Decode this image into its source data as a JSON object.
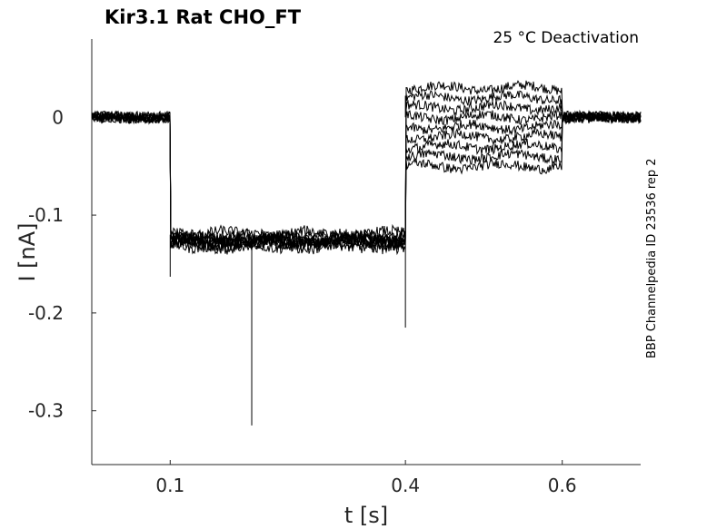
{
  "chart_data": {
    "type": "line",
    "title": "Kir3.1  Rat  CHO_FT",
    "annotation": "25 °C  Deactivation",
    "side_label": "BBP Channelpedia ID 23536 rep 2",
    "xlabel": "t [s]",
    "ylabel": "I [nA]",
    "xlim": [
      0.0,
      0.7
    ],
    "ylim": [
      -0.355,
      0.08
    ],
    "xticks": [
      {
        "value": 0.1,
        "label": "0.1"
      },
      {
        "value": 0.4,
        "label": "0.4"
      },
      {
        "value": 0.6,
        "label": "0.6"
      }
    ],
    "yticks": [
      {
        "value": 0,
        "label": "0"
      },
      {
        "value": -0.1,
        "label": "-0.1"
      },
      {
        "value": -0.2,
        "label": "-0.2"
      },
      {
        "value": -0.3,
        "label": "-0.3"
      }
    ],
    "grid": false,
    "protocol_phases": {
      "holding_end": 0.1,
      "hyperpolarizing_step_end": 0.4,
      "test_step_end": 0.6
    },
    "series": [
      {
        "values": {
          "holding": 0.0,
          "step": -0.125,
          "test": 0.03,
          "tail": 0.0
        }
      },
      {
        "values": {
          "holding": 0.0,
          "step": -0.128,
          "test": 0.02,
          "tail": 0.0
        }
      },
      {
        "values": {
          "holding": 0.0,
          "step": -0.122,
          "test": 0.01,
          "tail": 0.0
        }
      },
      {
        "values": {
          "holding": 0.0,
          "step": -0.13,
          "test": 0.0,
          "tail": 0.0
        }
      },
      {
        "values": {
          "holding": 0.0,
          "step": -0.12,
          "test": -0.01,
          "tail": 0.0
        }
      },
      {
        "values": {
          "holding": 0.0,
          "step": -0.127,
          "test": -0.02,
          "tail": 0.0
        }
      },
      {
        "values": {
          "holding": 0.0,
          "step": -0.124,
          "test": -0.03,
          "tail": 0.0
        }
      },
      {
        "values": {
          "holding": 0.0,
          "step": -0.131,
          "test": -0.04,
          "tail": 0.0
        }
      },
      {
        "values": {
          "holding": 0.0,
          "step": -0.126,
          "test": -0.05,
          "tail": 0.0
        }
      }
    ],
    "transients": [
      {
        "x": 0.1,
        "y": -0.163
      },
      {
        "x": 0.4,
        "y": -0.215
      },
      {
        "x": 0.4,
        "y": 0.022
      },
      {
        "x": 0.204,
        "y": -0.315
      }
    ]
  }
}
